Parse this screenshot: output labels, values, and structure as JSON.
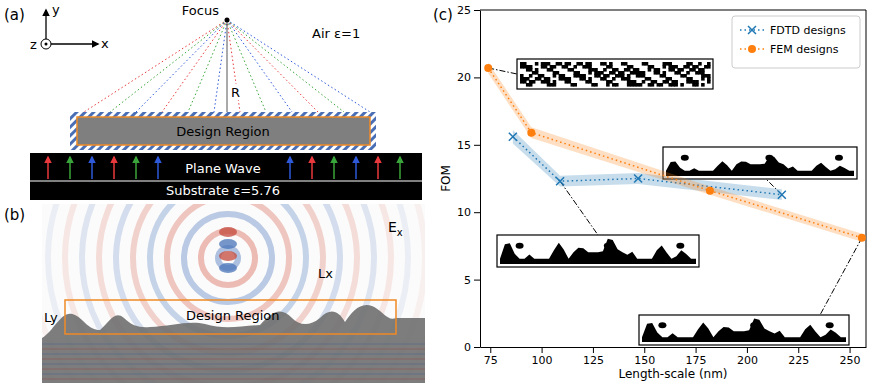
{
  "chart_data": {
    "type": "line",
    "panel_label": "(c)",
    "x_label": "Length-scale (nm)",
    "y_label": "FOM",
    "xlim": [
      70,
      258
    ],
    "ylim": [
      0,
      25
    ],
    "xticks": [
      75,
      100,
      125,
      150,
      175,
      200,
      225,
      250
    ],
    "yticks": [
      0,
      5,
      10,
      15,
      20,
      25
    ],
    "legend": "upper right",
    "series": [
      {
        "name": "FDTD designs",
        "color": "#1f77b4",
        "marker": "x",
        "line_style": "dotted",
        "x": [
          86,
          109,
          147,
          217
        ],
        "values": [
          15.6,
          12.3,
          12.5,
          11.3
        ],
        "error": [
          0.5,
          0.4,
          0.4,
          0.4
        ]
      },
      {
        "name": "FEM designs",
        "color": "#ff7f0e",
        "marker": "o",
        "line_style": "dotted",
        "x": [
          74,
          95,
          182,
          256
        ],
        "values": [
          20.7,
          15.9,
          11.6,
          8.1
        ],
        "error": [
          0.4,
          0.4,
          0.3,
          0.3
        ]
      }
    ]
  },
  "diagram": {
    "panel_a": {
      "label": "(a)",
      "axis_x": "x",
      "axis_y": "y",
      "axis_z": "z",
      "focus": "Focus",
      "medium": "Air ε=1",
      "radius": "R",
      "design_region": "Design Region",
      "source": "Plane Wave",
      "substrate": "Substrate ε=5.76"
    },
    "panel_b": {
      "label": "(b)",
      "field": {
        "main": "E",
        "sub": "x"
      },
      "lx": "Lx",
      "ly": "Ly",
      "design_region": "Design Region"
    }
  }
}
